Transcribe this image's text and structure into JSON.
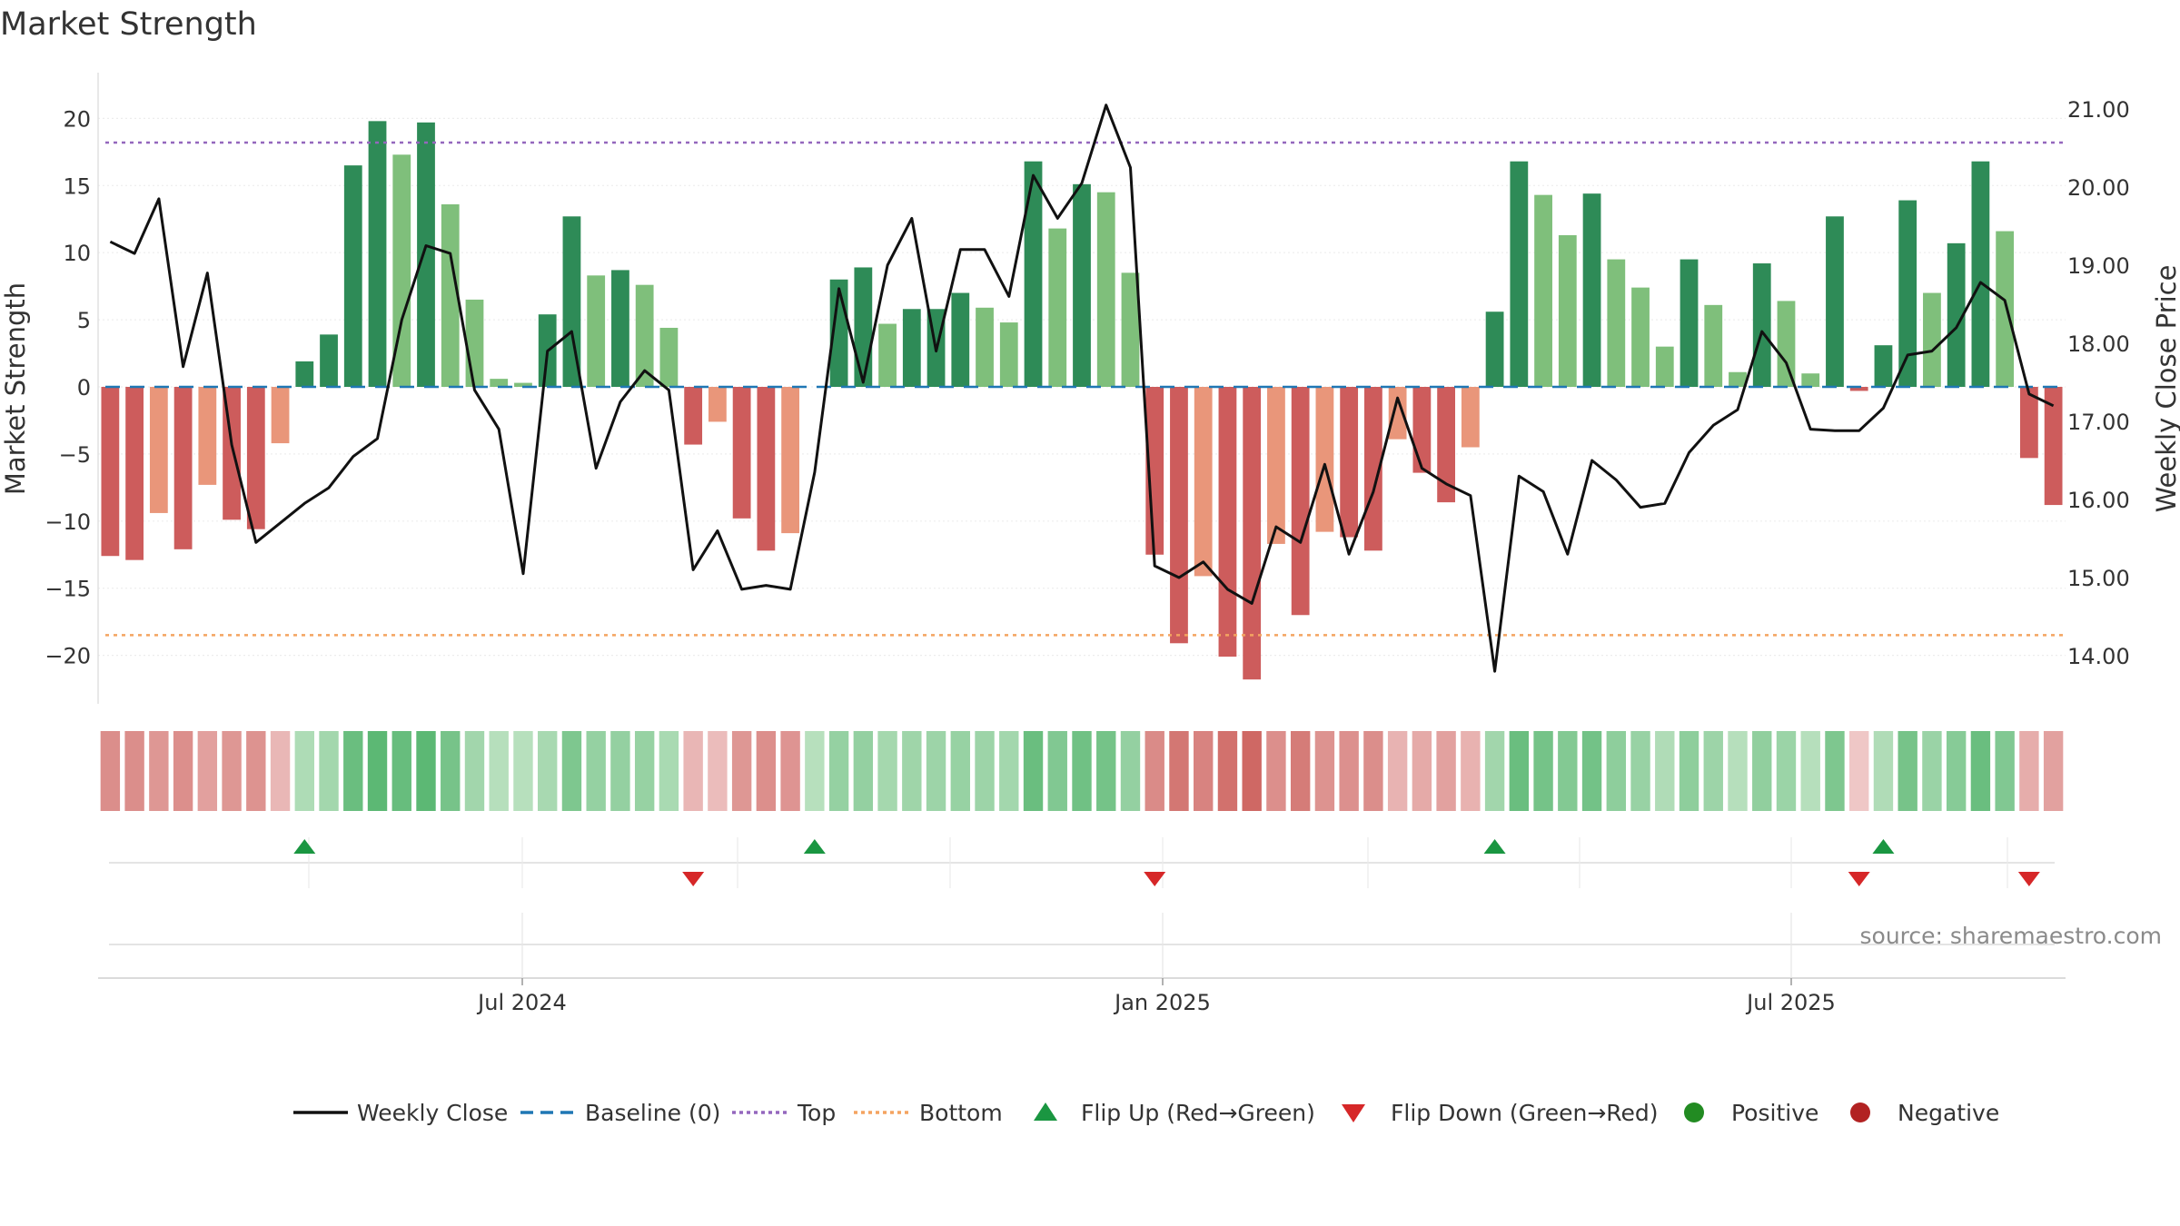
{
  "chart_data": {
    "type": "bar+line",
    "title": "Market Strength",
    "source": "source: sharemaestro.com",
    "ylabel_left": "Market Strength",
    "ylabel_right": "Weekly Close Price",
    "y_left_ticks": [
      "20",
      "15",
      "10",
      "5",
      "0",
      "−5",
      "−10",
      "−15",
      "−20"
    ],
    "y_right_ticks": [
      "21.00",
      "20.00",
      "19.00",
      "18.00",
      "17.00",
      "16.00",
      "15.00",
      "14.00"
    ],
    "x_tick_labels": [
      "Jul 2024",
      "Jan 2025",
      "Jul 2025"
    ],
    "ylim_left": [
      -23.5,
      24
    ],
    "ylim_right": [
      13.2,
      21.8
    ],
    "top_level": 18.2,
    "bottom_level": -18.5,
    "baseline": 0,
    "strength": [
      -12.6,
      -12.9,
      -9.4,
      -12.1,
      -7.3,
      -9.9,
      -10.6,
      -4.2,
      1.9,
      3.9,
      16.5,
      19.8,
      17.3,
      19.7,
      13.6,
      6.5,
      0.6,
      0.3,
      5.4,
      12.7,
      8.3,
      8.7,
      7.6,
      4.4,
      -4.3,
      -2.6,
      -9.8,
      -12.2,
      -10.9,
      0.0,
      8.0,
      8.9,
      4.7,
      5.8,
      5.8,
      7.0,
      5.9,
      4.8,
      16.8,
      11.8,
      15.1,
      14.5,
      8.5,
      -12.5,
      -19.1,
      -14.1,
      -20.1,
      -21.8,
      -11.7,
      -17.0,
      -10.8,
      -11.2,
      -12.2,
      -3.9,
      -6.4,
      -8.6,
      -4.5,
      5.6,
      16.8,
      14.3,
      11.3,
      14.4,
      9.5,
      7.4,
      3.0,
      9.5,
      6.1,
      1.1,
      9.2,
      6.4,
      1.0,
      12.7,
      -0.3,
      3.1,
      13.9,
      7.0,
      10.7,
      16.8,
      11.6,
      -5.3,
      -8.8
    ],
    "strength_shade": [
      "d",
      "d",
      "l",
      "d",
      "l",
      "d",
      "d",
      "l",
      "d",
      "d",
      "d",
      "d",
      "l",
      "d",
      "l",
      "l",
      "l",
      "l",
      "d",
      "d",
      "l",
      "d",
      "l",
      "l",
      "d",
      "l",
      "d",
      "d",
      "l",
      "d",
      "d",
      "d",
      "l",
      "d",
      "d",
      "d",
      "l",
      "l",
      "d",
      "l",
      "d",
      "l",
      "l",
      "d",
      "d",
      "l",
      "d",
      "d",
      "l",
      "d",
      "l",
      "d",
      "d",
      "l",
      "d",
      "d",
      "l",
      "d",
      "d",
      "l",
      "l",
      "d",
      "l",
      "l",
      "l",
      "d",
      "l",
      "l",
      "d",
      "l",
      "l",
      "d",
      "d",
      "d",
      "d",
      "l",
      "d",
      "d",
      "l",
      "d",
      "d"
    ],
    "weekly_close": [
      19.3,
      19.15,
      19.85,
      17.7,
      18.9,
      16.7,
      15.45,
      15.7,
      15.95,
      16.15,
      16.55,
      16.78,
      18.3,
      19.25,
      19.15,
      17.4,
      16.9,
      15.05,
      17.9,
      18.15,
      16.4,
      17.25,
      17.65,
      17.4,
      15.1,
      15.6,
      14.85,
      14.9,
      14.85,
      16.35,
      18.7,
      17.5,
      19.0,
      19.6,
      17.9,
      19.2,
      19.2,
      18.6,
      20.15,
      19.6,
      20.05,
      21.05,
      20.25,
      15.15,
      15.0,
      15.2,
      14.85,
      14.67,
      15.65,
      15.45,
      16.45,
      15.3,
      16.1,
      17.3,
      16.4,
      16.2,
      16.05,
      13.8,
      16.3,
      16.1,
      15.3,
      16.5,
      16.25,
      15.9,
      15.95,
      16.6,
      16.95,
      17.15,
      18.15,
      17.75,
      16.9,
      16.88,
      16.88,
      17.17,
      17.85,
      17.9,
      18.2,
      18.78,
      18.55,
      17.35,
      17.2
    ],
    "band_intensity": [
      -0.56,
      -0.56,
      -0.49,
      -0.55,
      -0.42,
      -0.49,
      -0.52,
      -0.24,
      0.26,
      0.33,
      0.7,
      0.79,
      0.72,
      0.79,
      0.62,
      0.34,
      0.21,
      0.2,
      0.3,
      0.57,
      0.42,
      0.43,
      0.41,
      0.29,
      -0.25,
      -0.2,
      -0.49,
      -0.55,
      -0.51,
      0.2,
      0.42,
      0.43,
      0.32,
      0.36,
      0.37,
      0.41,
      0.37,
      0.33,
      0.7,
      0.55,
      0.66,
      0.63,
      0.43,
      -0.58,
      -0.74,
      -0.64,
      -0.78,
      -0.85,
      -0.55,
      -0.7,
      -0.52,
      -0.54,
      -0.56,
      -0.27,
      -0.34,
      -0.41,
      -0.28,
      0.34,
      0.7,
      0.63,
      0.54,
      0.64,
      0.47,
      0.4,
      0.25,
      0.47,
      0.37,
      0.21,
      0.45,
      0.38,
      0.21,
      0.57,
      -0.12,
      0.25,
      0.62,
      0.39,
      0.51,
      0.7,
      0.55,
      -0.32,
      -0.41
    ],
    "flip_up_weeks": [
      8,
      29,
      57,
      73
    ],
    "flip_down_weeks": [
      24,
      43,
      72,
      79
    ],
    "legend": [
      "Weekly Close",
      "Baseline (0)",
      "Top",
      "Bottom",
      "Flip Up (Red→Green)",
      "Flip Down (Green→Red)",
      "Positive",
      "Negative"
    ],
    "colors": {
      "pos_dark": "#2e8b57",
      "pos_light": "#7fbf7b",
      "neg_dark": "#cd5c5c",
      "neg_light": "#e9967a",
      "line": "#111111",
      "baseline": "#1f77b4",
      "top": "#9467bd",
      "bottom": "#f4a460",
      "flip_up": "#1a9641",
      "flip_down": "#d62728",
      "positive": "#228b22",
      "negative": "#b22222"
    }
  }
}
